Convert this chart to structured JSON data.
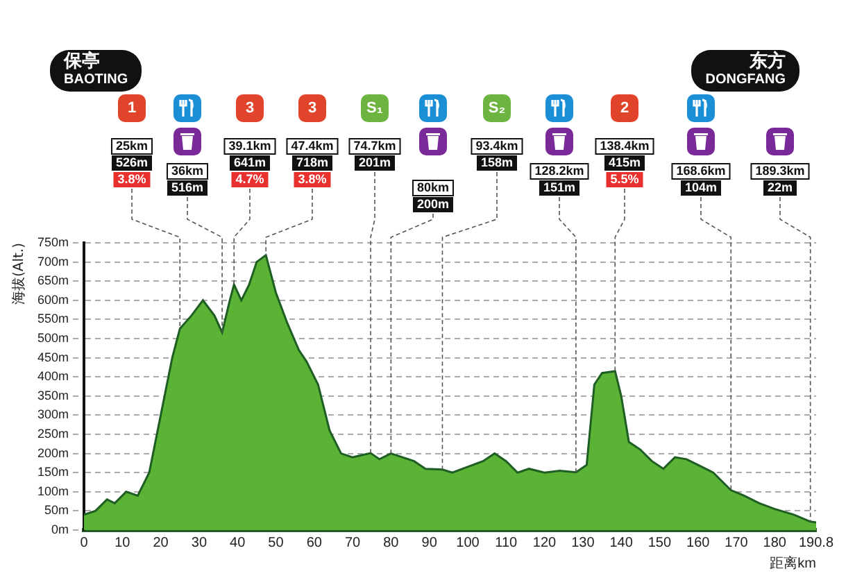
{
  "chart_data": {
    "type": "area",
    "xlabel": "距离km",
    "ylabel": "海拔(Alt.)",
    "x": [
      0,
      3,
      6,
      8,
      11,
      14,
      17,
      20,
      23,
      25,
      28,
      31,
      34,
      36,
      38,
      39.1,
      41,
      43,
      45,
      47.4,
      50,
      53,
      56,
      58,
      61,
      64,
      67,
      70,
      74.7,
      77,
      80,
      83,
      86,
      89,
      93.4,
      96,
      100,
      104,
      107,
      110,
      113,
      116,
      120,
      124,
      128.2,
      131,
      133,
      135,
      138.4,
      140,
      142,
      145,
      148,
      151,
      154,
      157,
      160,
      164,
      168.6,
      172,
      176,
      180,
      185,
      189.3,
      190.8
    ],
    "series": [
      {
        "color": "#5bb335",
        "values": [
          40,
          50,
          80,
          70,
          100,
          90,
          150,
          300,
          450,
          526,
          560,
          600,
          560,
          516,
          600,
          641,
          600,
          640,
          700,
          718,
          620,
          540,
          470,
          440,
          380,
          260,
          200,
          190,
          201,
          185,
          200,
          190,
          180,
          160,
          158,
          150,
          165,
          180,
          200,
          180,
          150,
          160,
          150,
          155,
          151,
          170,
          380,
          410,
          415,
          350,
          230,
          210,
          180,
          160,
          190,
          185,
          170,
          150,
          104,
          90,
          70,
          55,
          40,
          22,
          20
        ]
      }
    ],
    "xlim": [
      0,
      190.8
    ],
    "xticks": [
      0,
      10,
      20,
      30,
      40,
      50,
      60,
      70,
      80,
      90,
      100,
      110,
      120,
      130,
      140,
      150,
      160,
      170,
      180,
      190.8
    ],
    "ylim": [
      0,
      750
    ],
    "yticks": [
      {
        "value": 0,
        "label": "0m"
      },
      {
        "value": 50,
        "label": "50m"
      },
      {
        "value": 100,
        "label": "100m"
      },
      {
        "value": 150,
        "label": "150m"
      },
      {
        "value": 200,
        "label": "200m"
      },
      {
        "value": 250,
        "label": "250m"
      },
      {
        "value": 300,
        "label": "300m"
      },
      {
        "value": 350,
        "label": "350m"
      },
      {
        "value": 400,
        "label": "400m"
      },
      {
        "value": 450,
        "label": "450m"
      },
      {
        "value": 500,
        "label": "500m"
      },
      {
        "value": 550,
        "label": "550m"
      },
      {
        "value": 600,
        "label": "600m"
      },
      {
        "value": 650,
        "label": "650m"
      },
      {
        "value": 700,
        "label": "700m"
      },
      {
        "value": 750,
        "label": "750m"
      }
    ],
    "grid": "y",
    "legend": false,
    "annotations": [
      "保亭",
      "BAOTING",
      "东方",
      "DONGFANG",
      "1",
      "25km",
      "526m",
      {
        "text": "3.8%",
        "x": 25,
        "y": 526
      },
      "36km",
      {
        "text": "516m",
        "x": 36,
        "y": 516
      },
      "3",
      "39.1km",
      "641m",
      {
        "text": "4.7%",
        "x": 39.1,
        "y": 641
      },
      "3",
      "47.4km",
      "718m",
      {
        "text": "3.8%",
        "x": 47.4,
        "y": 718
      },
      "S₁",
      "74.7km",
      {
        "text": "201m",
        "x": 74.7,
        "y": 201
      },
      "80km",
      {
        "text": "200m",
        "x": 80,
        "y": 200
      },
      "S₂",
      "93.4km",
      {
        "text": "158m",
        "x": 93.4,
        "y": 158
      },
      "128.2km",
      {
        "text": "151m",
        "x": 128.2,
        "y": 151
      },
      "2",
      "138.4km",
      "415m",
      {
        "text": "5.5%",
        "x": 138.4,
        "y": 415
      },
      "168.6km",
      {
        "text": "104m",
        "x": 168.6,
        "y": 104
      },
      "189.3km",
      {
        "text": "22m",
        "x": 189.3,
        "y": 22
      }
    ]
  }
}
